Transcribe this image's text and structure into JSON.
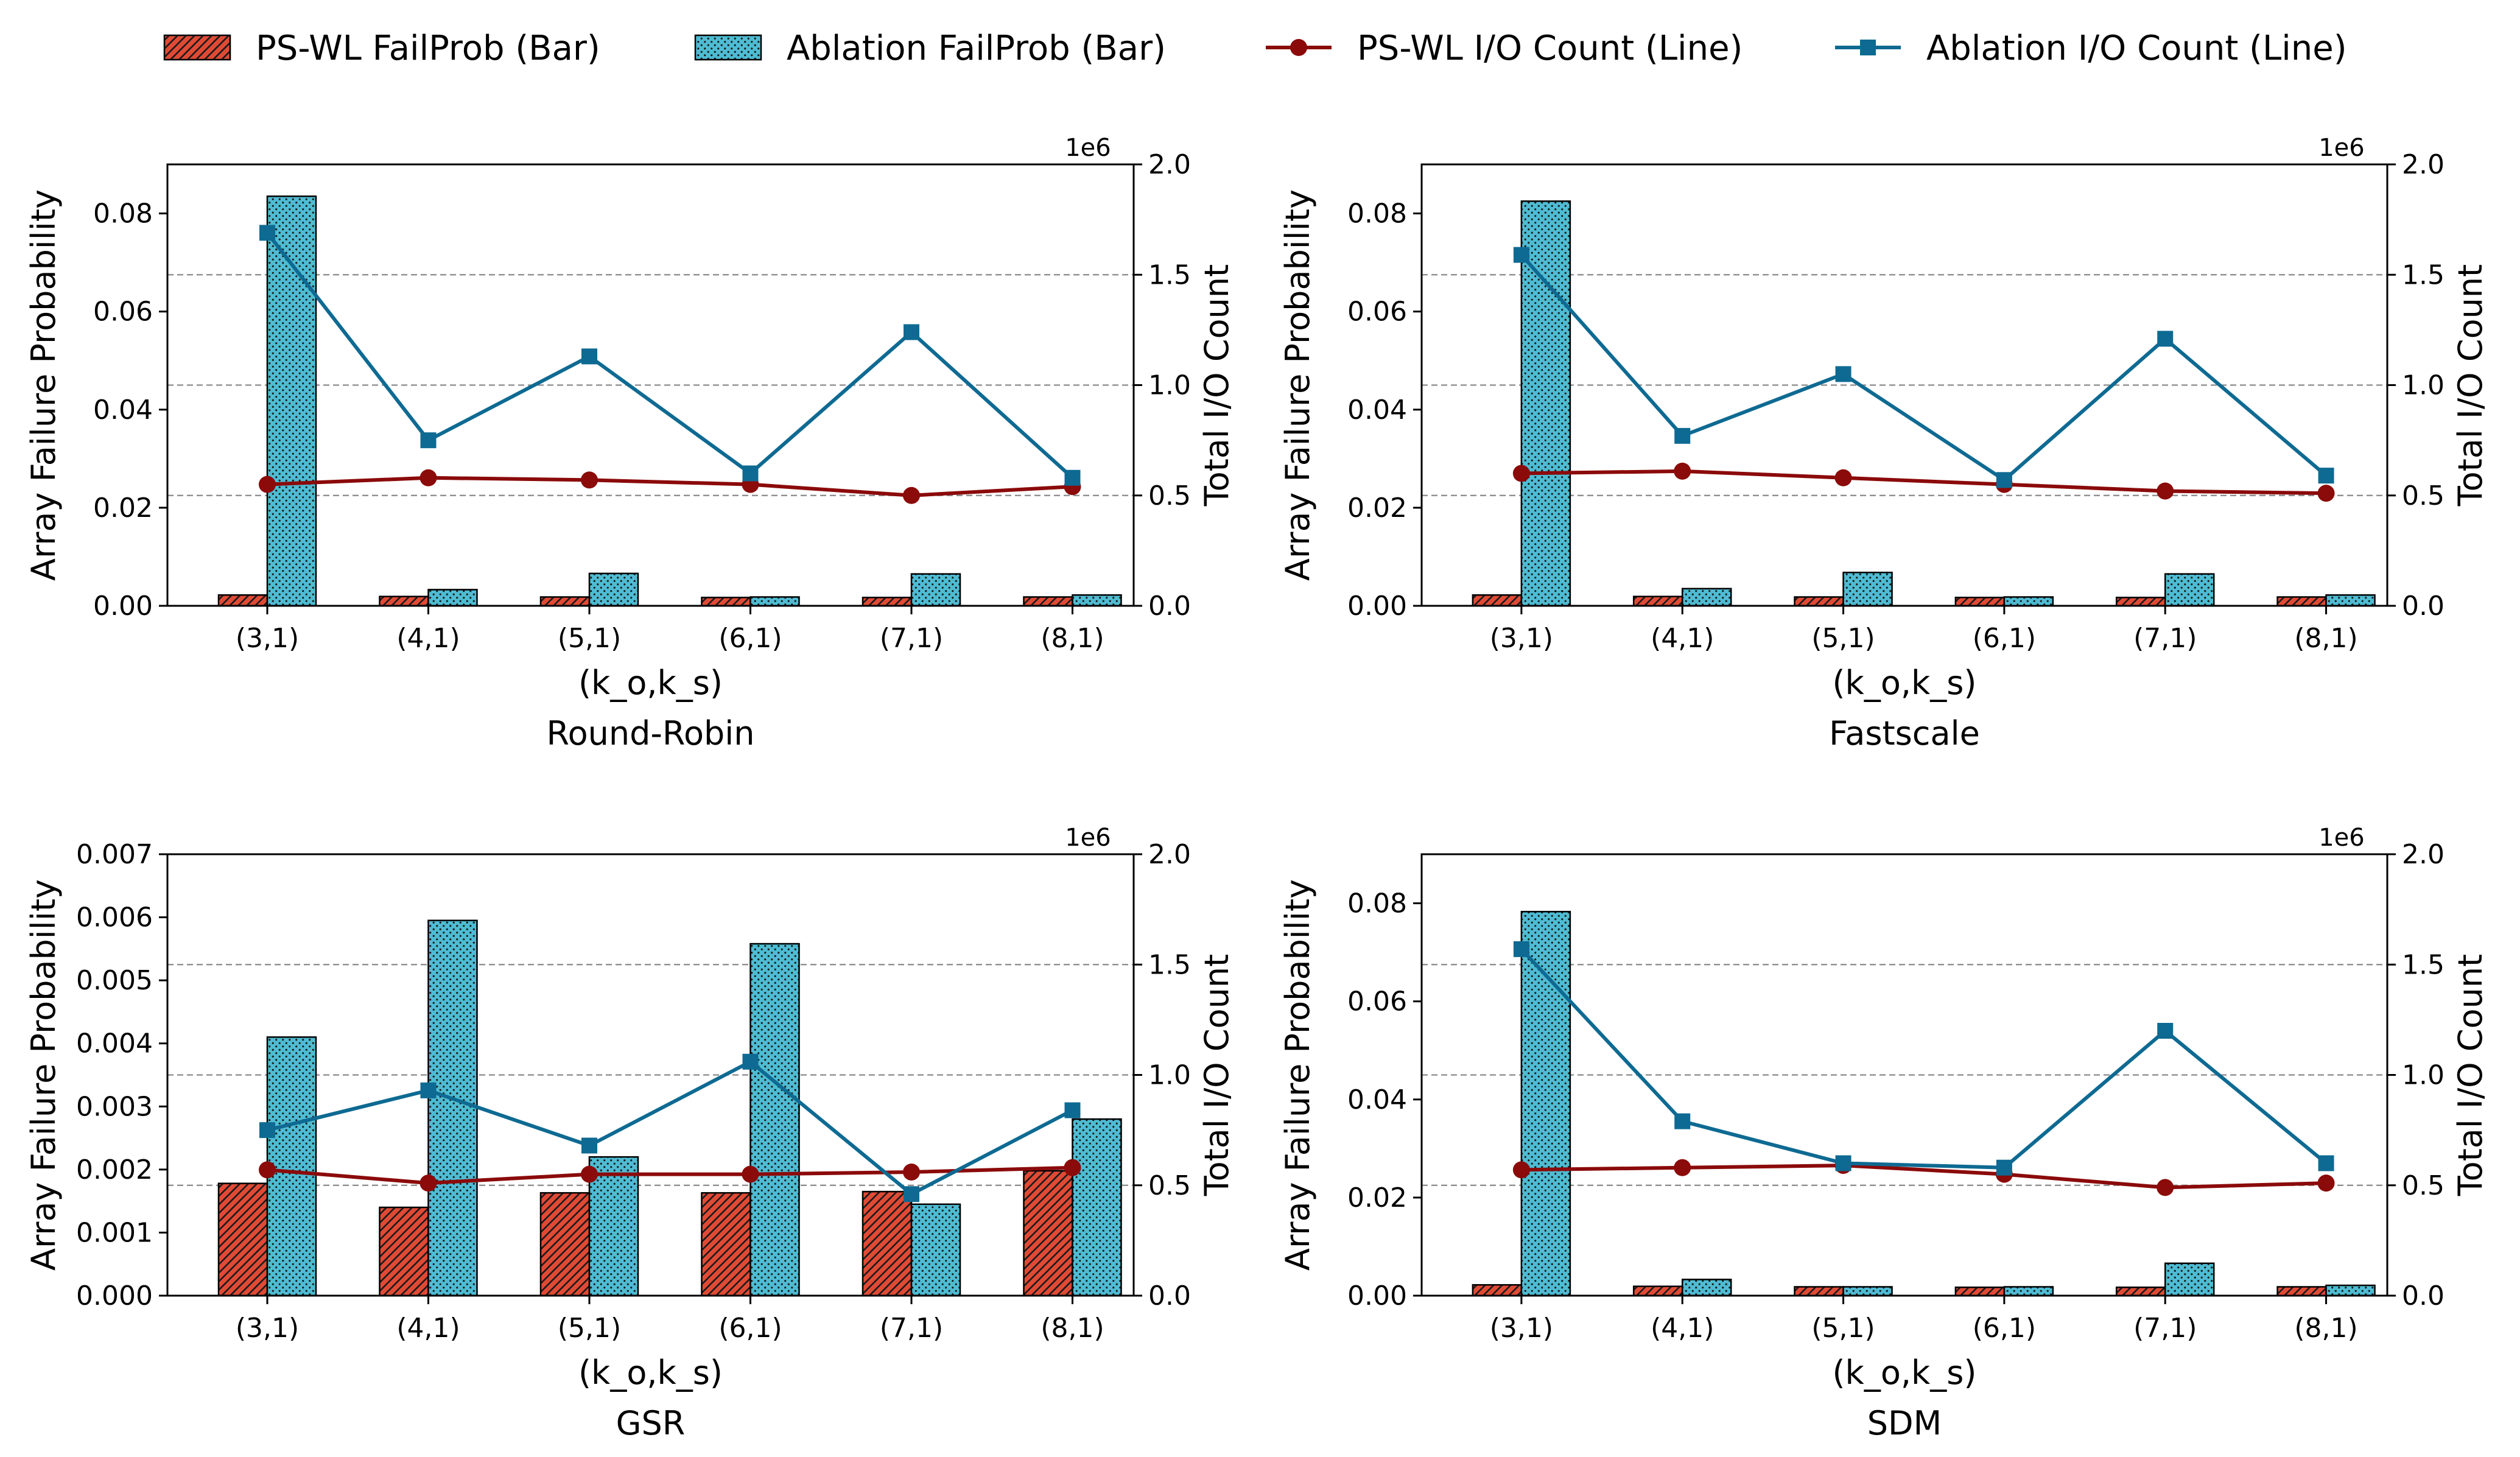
{
  "legend": [
    {
      "label": "PS-WL FailProb (Bar)",
      "kind": "bar",
      "color": "#e04a35",
      "hatch": "diag"
    },
    {
      "label": "Ablation FailProb (Bar)",
      "kind": "bar",
      "color": "#4ebcd3",
      "hatch": "dots"
    },
    {
      "label": "PS-WL I/O Count (Line)",
      "kind": "line",
      "color": "#8b0a0a",
      "marker": "circle"
    },
    {
      "label": "Ablation I/O Count (Line)",
      "kind": "line",
      "color": "#0e6a92",
      "marker": "square"
    }
  ],
  "chart_data": [
    {
      "type": "bar",
      "title": "Round-Robin",
      "xlabel": "(k_o,k_s)",
      "ylabel": "Array Failure Probability",
      "y2label": "Total I/O Count",
      "y2_offset_label": "1e6",
      "categories": [
        "(3,1)",
        "(4,1)",
        "(5,1)",
        "(6,1)",
        "(7,1)",
        "(8,1)"
      ],
      "ylim": [
        0,
        0.09
      ],
      "yticks": [
        0,
        0.02,
        0.04,
        0.06,
        0.08
      ],
      "ytick_labels": [
        "0.00",
        "0.02",
        "0.04",
        "0.06",
        "0.08"
      ],
      "y2lim": [
        0,
        2.0
      ],
      "y2ticks": [
        0,
        0.5,
        1.0,
        1.5,
        2.0
      ],
      "y2tick_labels": [
        "0.0",
        "0.5",
        "1.0",
        "1.5",
        "2.0"
      ],
      "bar_series": [
        {
          "name": "PS-WL FailProb (Bar)",
          "values": [
            0.0022,
            0.0019,
            0.0018,
            0.0017,
            0.0017,
            0.0018
          ]
        },
        {
          "name": "Ablation FailProb (Bar)",
          "values": [
            0.0835,
            0.0033,
            0.0066,
            0.0018,
            0.0065,
            0.0022
          ]
        }
      ],
      "line_series": [
        {
          "name": "PS-WL I/O Count (Line)",
          "values": [
            0.55,
            0.58,
            0.57,
            0.55,
            0.5,
            0.54
          ]
        },
        {
          "name": "Ablation I/O Count (Line)",
          "values": [
            1.69,
            0.75,
            1.13,
            0.6,
            1.24,
            0.58
          ]
        }
      ]
    },
    {
      "type": "bar",
      "title": "Fastscale",
      "xlabel": "(k_o,k_s)",
      "ylabel": "Array Failure Probability",
      "y2label": "Total I/O Count",
      "y2_offset_label": "1e6",
      "categories": [
        "(3,1)",
        "(4,1)",
        "(5,1)",
        "(6,1)",
        "(7,1)",
        "(8,1)"
      ],
      "ylim": [
        0,
        0.09
      ],
      "yticks": [
        0,
        0.02,
        0.04,
        0.06,
        0.08
      ],
      "ytick_labels": [
        "0.00",
        "0.02",
        "0.04",
        "0.06",
        "0.08"
      ],
      "y2lim": [
        0,
        2.0
      ],
      "y2ticks": [
        0,
        0.5,
        1.0,
        1.5,
        2.0
      ],
      "y2tick_labels": [
        "0.0",
        "0.5",
        "1.0",
        "1.5",
        "2.0"
      ],
      "bar_series": [
        {
          "name": "PS-WL FailProb (Bar)",
          "values": [
            0.0022,
            0.0019,
            0.0018,
            0.0017,
            0.0017,
            0.0018
          ]
        },
        {
          "name": "Ablation FailProb (Bar)",
          "values": [
            0.0825,
            0.0035,
            0.0068,
            0.0018,
            0.0065,
            0.0022
          ]
        }
      ],
      "line_series": [
        {
          "name": "PS-WL I/O Count (Line)",
          "values": [
            0.6,
            0.61,
            0.58,
            0.55,
            0.52,
            0.51
          ]
        },
        {
          "name": "Ablation I/O Count (Line)",
          "values": [
            1.59,
            0.77,
            1.05,
            0.57,
            1.21,
            0.59
          ]
        }
      ]
    },
    {
      "type": "bar",
      "title": "GSR",
      "xlabel": "(k_o,k_s)",
      "ylabel": "Array Failure Probability",
      "y2label": "Total I/O Count",
      "y2_offset_label": "1e6",
      "categories": [
        "(3,1)",
        "(4,1)",
        "(5,1)",
        "(6,1)",
        "(7,1)",
        "(8,1)"
      ],
      "ylim": [
        0,
        0.007
      ],
      "yticks": [
        0,
        0.001,
        0.002,
        0.003,
        0.004,
        0.005,
        0.006,
        0.007
      ],
      "ytick_labels": [
        "0.000",
        "0.001",
        "0.002",
        "0.003",
        "0.004",
        "0.005",
        "0.006",
        "0.007"
      ],
      "y2lim": [
        0,
        2.0
      ],
      "y2ticks": [
        0,
        0.5,
        1.0,
        1.5,
        2.0
      ],
      "y2tick_labels": [
        "0.0",
        "0.5",
        "1.0",
        "1.5",
        "2.0"
      ],
      "bar_series": [
        {
          "name": "PS-WL FailProb (Bar)",
          "values": [
            0.00178,
            0.0014,
            0.00163,
            0.00163,
            0.00165,
            0.00198
          ]
        },
        {
          "name": "Ablation FailProb (Bar)",
          "values": [
            0.0041,
            0.00595,
            0.0022,
            0.00558,
            0.00145,
            0.0028
          ]
        }
      ],
      "line_series": [
        {
          "name": "PS-WL I/O Count (Line)",
          "values": [
            0.57,
            0.51,
            0.55,
            0.55,
            0.56,
            0.58
          ]
        },
        {
          "name": "Ablation I/O Count (Line)",
          "values": [
            0.75,
            0.93,
            0.68,
            1.06,
            0.46,
            0.84
          ]
        }
      ]
    },
    {
      "type": "bar",
      "title": "SDM",
      "xlabel": "(k_o,k_s)",
      "ylabel": "Array Failure Probability",
      "y2label": "Total I/O Count",
      "y2_offset_label": "1e6",
      "categories": [
        "(3,1)",
        "(4,1)",
        "(5,1)",
        "(6,1)",
        "(7,1)",
        "(8,1)"
      ],
      "ylim": [
        0,
        0.09
      ],
      "yticks": [
        0,
        0.02,
        0.04,
        0.06,
        0.08
      ],
      "ytick_labels": [
        "0.00",
        "0.02",
        "0.04",
        "0.06",
        "0.08"
      ],
      "y2lim": [
        0,
        2.0
      ],
      "y2ticks": [
        0,
        0.5,
        1.0,
        1.5,
        2.0
      ],
      "y2tick_labels": [
        "0.0",
        "0.5",
        "1.0",
        "1.5",
        "2.0"
      ],
      "bar_series": [
        {
          "name": "PS-WL FailProb (Bar)",
          "values": [
            0.0022,
            0.0019,
            0.0018,
            0.0017,
            0.0017,
            0.0018
          ]
        },
        {
          "name": "Ablation FailProb (Bar)",
          "values": [
            0.0783,
            0.0033,
            0.0018,
            0.0018,
            0.0066,
            0.0021
          ]
        }
      ],
      "line_series": [
        {
          "name": "PS-WL I/O Count (Line)",
          "values": [
            0.57,
            0.58,
            0.59,
            0.55,
            0.49,
            0.51
          ]
        },
        {
          "name": "Ablation I/O Count (Line)",
          "values": [
            1.57,
            0.79,
            0.6,
            0.58,
            1.2,
            0.6
          ]
        }
      ]
    }
  ]
}
